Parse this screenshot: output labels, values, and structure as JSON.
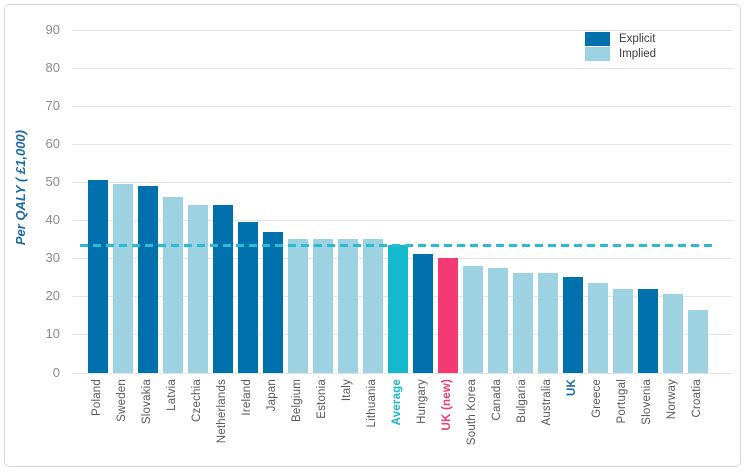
{
  "figure": {
    "border_color": "#D8D8D8",
    "background": "#FFFFFF"
  },
  "legend": {
    "position": "top-right",
    "items": [
      {
        "label": "Explicit",
        "series": "explicit"
      },
      {
        "label": "Implied",
        "series": "implied"
      }
    ]
  },
  "chart_data": {
    "type": "bar",
    "title": "",
    "ylabel": "Per QALY ( £1,000)",
    "xlabel": "",
    "ylim": [
      0,
      90
    ],
    "y_ticks": [
      0,
      10,
      20,
      30,
      40,
      50,
      60,
      70,
      80,
      90
    ],
    "grid": "horizontal",
    "legend_position": "top-right",
    "average_line": {
      "value": 33.5,
      "style": "dashed",
      "color": "#2BBCD4"
    },
    "categories": [
      "Poland",
      "Sweden",
      "Slovakia",
      "Latvia",
      "Czechia",
      "Netherlands",
      "Ireland",
      "Japan",
      "Belgium",
      "Estonia",
      "Italy",
      "Lithuania",
      "Average",
      "Hungary",
      "UK (new)",
      "South Korea",
      "Canada",
      "Bulgaria",
      "Australia",
      "UK",
      "Greece",
      "Portugal",
      "Slovenia",
      "Norway",
      "Croatia"
    ],
    "values": [
      50.5,
      49.5,
      49,
      46,
      44,
      44,
      39.5,
      37,
      35,
      35,
      35,
      35,
      33.5,
      31,
      30,
      28,
      27.5,
      26,
      26,
      25,
      23.5,
      22,
      22,
      20.5,
      16.5
    ],
    "items": [
      {
        "label": "Poland",
        "value": 50.5,
        "series": "explicit",
        "label_style": "normal"
      },
      {
        "label": "Sweden",
        "value": 49.5,
        "series": "implied",
        "label_style": "normal"
      },
      {
        "label": "Slovakia",
        "value": 49,
        "series": "explicit",
        "label_style": "normal"
      },
      {
        "label": "Latvia",
        "value": 46,
        "series": "implied",
        "label_style": "normal"
      },
      {
        "label": "Czechia",
        "value": 44,
        "series": "implied",
        "label_style": "normal"
      },
      {
        "label": "Netherlands",
        "value": 44,
        "series": "explicit",
        "label_style": "normal"
      },
      {
        "label": "Ireland",
        "value": 39.5,
        "series": "explicit",
        "label_style": "normal"
      },
      {
        "label": "Japan",
        "value": 37,
        "series": "explicit",
        "label_style": "normal"
      },
      {
        "label": "Belgium",
        "value": 35,
        "series": "implied",
        "label_style": "normal"
      },
      {
        "label": "Estonia",
        "value": 35,
        "series": "implied",
        "label_style": "normal"
      },
      {
        "label": "Italy",
        "value": 35,
        "series": "implied",
        "label_style": "normal"
      },
      {
        "label": "Lithuania",
        "value": 35,
        "series": "implied",
        "label_style": "normal"
      },
      {
        "label": "Average",
        "value": 33.5,
        "series": "average",
        "label_style": "average"
      },
      {
        "label": "Hungary",
        "value": 31,
        "series": "explicit",
        "label_style": "normal"
      },
      {
        "label": "UK (new)",
        "value": 30,
        "series": "highlight",
        "label_style": "highlight"
      },
      {
        "label": "South Korea",
        "value": 28,
        "series": "implied",
        "label_style": "normal"
      },
      {
        "label": "Canada",
        "value": 27.5,
        "series": "implied",
        "label_style": "normal"
      },
      {
        "label": "Bulgaria",
        "value": 26,
        "series": "implied",
        "label_style": "normal"
      },
      {
        "label": "Australia",
        "value": 26,
        "series": "implied",
        "label_style": "normal"
      },
      {
        "label": "UK",
        "value": 25,
        "series": "explicit",
        "label_style": "uk"
      },
      {
        "label": "Greece",
        "value": 23.5,
        "series": "implied",
        "label_style": "normal"
      },
      {
        "label": "Portugal",
        "value": 22,
        "series": "implied",
        "label_style": "normal"
      },
      {
        "label": "Slovenia",
        "value": 22,
        "series": "explicit",
        "label_style": "normal"
      },
      {
        "label": "Norway",
        "value": 20.5,
        "series": "implied",
        "label_style": "normal"
      },
      {
        "label": "Croatia",
        "value": 16.5,
        "series": "implied",
        "label_style": "normal"
      }
    ],
    "series_colors": {
      "explicit": "#0071AD",
      "implied": "#9CD2E2",
      "average": "#16B8CE",
      "highlight": "#F33A72"
    },
    "label_colors": {
      "normal": "#595959",
      "average": "#1CB8CE",
      "highlight": "#F33A72",
      "uk": "#1D6BA5"
    },
    "tick_label_color": "#8C8C8C",
    "gridline_color": "#E4E4E4",
    "axis_title_color": "#1D6BA5"
  }
}
